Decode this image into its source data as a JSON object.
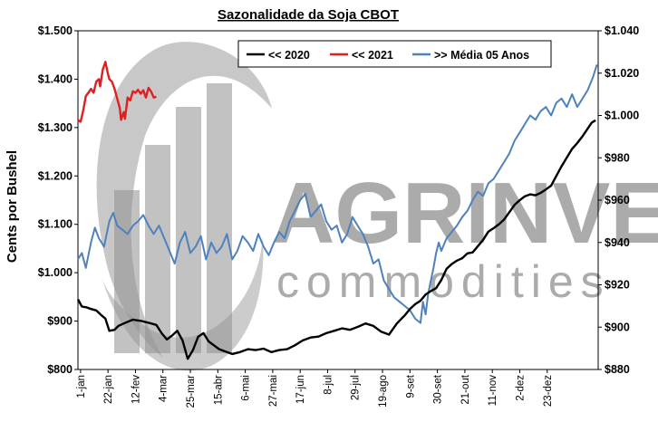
{
  "chart_data": {
    "type": "line",
    "title": "Sazonalidade da Soja CBOT",
    "ylabel": "Cents por Bushel",
    "y_left": {
      "ylim": [
        800,
        1500
      ],
      "ticks": [
        "$800",
        "$900",
        "$1.000",
        "$1.100",
        "$1.200",
        "$1.300",
        "$1.400",
        "$1.500"
      ]
    },
    "y_right": {
      "ylim": [
        880,
        1040
      ],
      "ticks": [
        "$880",
        "$900",
        "$920",
        "$940",
        "$960",
        "$980",
        "$1.000",
        "$1.020",
        "$1.040"
      ]
    },
    "x_ticks": [
      "1-jan",
      "22-jan",
      "12-fev",
      "4-mar",
      "25-mar",
      "15-abr",
      "6-mai",
      "27-mai",
      "17-jun",
      "8-jul",
      "29-jul",
      "19-ago",
      "9-set",
      "30-set",
      "21-out",
      "11-nov",
      "2-dez",
      "23-dez"
    ],
    "legend": {
      "placement": "top"
    },
    "grid": false,
    "watermark": {
      "brand": "AGRINVEST",
      "sub": "commodities"
    },
    "colors": {
      "s2020": "#000000",
      "s2021": "#e02020",
      "media": "#4f81bd"
    },
    "series": [
      {
        "name": "<< 2020",
        "axis": "left",
        "color": "#000000",
        "points": [
          [
            0,
            945
          ],
          [
            3,
            930
          ],
          [
            7,
            928
          ],
          [
            10,
            925
          ],
          [
            14,
            922
          ],
          [
            18,
            912
          ],
          [
            21,
            905
          ],
          [
            24,
            880
          ],
          [
            28,
            882
          ],
          [
            31,
            890
          ],
          [
            35,
            895
          ],
          [
            42,
            903
          ],
          [
            49,
            900
          ],
          [
            56,
            895
          ],
          [
            60,
            892
          ],
          [
            64,
            875
          ],
          [
            68,
            862
          ],
          [
            72,
            870
          ],
          [
            76,
            880
          ],
          [
            80,
            860
          ],
          [
            84,
            822
          ],
          [
            88,
            840
          ],
          [
            92,
            868
          ],
          [
            96,
            875
          ],
          [
            100,
            858
          ],
          [
            104,
            850
          ],
          [
            108,
            842
          ],
          [
            112,
            838
          ],
          [
            118,
            832
          ],
          [
            124,
            836
          ],
          [
            130,
            842
          ],
          [
            136,
            840
          ],
          [
            142,
            843
          ],
          [
            148,
            836
          ],
          [
            154,
            840
          ],
          [
            160,
            842
          ],
          [
            166,
            850
          ],
          [
            172,
            860
          ],
          [
            178,
            866
          ],
          [
            184,
            868
          ],
          [
            190,
            875
          ],
          [
            196,
            880
          ],
          [
            202,
            885
          ],
          [
            208,
            882
          ],
          [
            214,
            888
          ],
          [
            220,
            895
          ],
          [
            226,
            890
          ],
          [
            232,
            878
          ],
          [
            238,
            872
          ],
          [
            244,
            895
          ],
          [
            250,
            912
          ],
          [
            254,
            925
          ],
          [
            258,
            935
          ],
          [
            262,
            942
          ],
          [
            266,
            955
          ],
          [
            270,
            962
          ],
          [
            274,
            968
          ],
          [
            278,
            985
          ],
          [
            282,
            1008
          ],
          [
            286,
            1018
          ],
          [
            290,
            1025
          ],
          [
            294,
            1030
          ],
          [
            298,
            1040
          ],
          [
            302,
            1042
          ],
          [
            306,
            1055
          ],
          [
            310,
            1068
          ],
          [
            314,
            1085
          ],
          [
            318,
            1092
          ],
          [
            322,
            1100
          ],
          [
            326,
            1110
          ],
          [
            330,
            1125
          ],
          [
            334,
            1140
          ],
          [
            338,
            1150
          ],
          [
            342,
            1158
          ],
          [
            346,
            1162
          ],
          [
            350,
            1160
          ],
          [
            354,
            1165
          ],
          [
            358,
            1172
          ],
          [
            362,
            1180
          ],
          [
            366,
            1200
          ],
          [
            370,
            1220
          ],
          [
            374,
            1238
          ],
          [
            378,
            1256
          ],
          [
            382,
            1268
          ],
          [
            386,
            1282
          ],
          [
            390,
            1298
          ],
          [
            393,
            1310
          ],
          [
            396,
            1315
          ]
        ]
      },
      {
        "name": "<< 2021",
        "axis": "left",
        "color": "#e02020",
        "points": [
          [
            0,
            1315
          ],
          [
            2,
            1312
          ],
          [
            4,
            1335
          ],
          [
            6,
            1365
          ],
          [
            8,
            1372
          ],
          [
            10,
            1380
          ],
          [
            12,
            1372
          ],
          [
            14,
            1395
          ],
          [
            16,
            1400
          ],
          [
            17,
            1385
          ],
          [
            19,
            1420
          ],
          [
            21,
            1436
          ],
          [
            23,
            1410
          ],
          [
            24,
            1400
          ],
          [
            26,
            1395
          ],
          [
            28,
            1380
          ],
          [
            30,
            1360
          ],
          [
            32,
            1340
          ],
          [
            33,
            1316
          ],
          [
            35,
            1332
          ],
          [
            36,
            1318
          ],
          [
            38,
            1362
          ],
          [
            40,
            1356
          ],
          [
            42,
            1375
          ],
          [
            44,
            1372
          ],
          [
            46,
            1378
          ],
          [
            48,
            1370
          ],
          [
            50,
            1377
          ],
          [
            52,
            1362
          ],
          [
            54,
            1382
          ],
          [
            56,
            1374
          ],
          [
            58,
            1362
          ],
          [
            60,
            1364
          ]
        ]
      },
      {
        "name": ">> Média 05 Anos",
        "axis": "right",
        "color": "#4f81bd",
        "points": [
          [
            0,
            932
          ],
          [
            3,
            935
          ],
          [
            6,
            928
          ],
          [
            10,
            940
          ],
          [
            13,
            947
          ],
          [
            16,
            942
          ],
          [
            20,
            938
          ],
          [
            24,
            950
          ],
          [
            27,
            954
          ],
          [
            30,
            948
          ],
          [
            34,
            946
          ],
          [
            38,
            944
          ],
          [
            42,
            948
          ],
          [
            46,
            950
          ],
          [
            50,
            953
          ],
          [
            54,
            948
          ],
          [
            58,
            944
          ],
          [
            62,
            948
          ],
          [
            66,
            942
          ],
          [
            70,
            936
          ],
          [
            74,
            930
          ],
          [
            78,
            940
          ],
          [
            82,
            945
          ],
          [
            86,
            935
          ],
          [
            90,
            938
          ],
          [
            94,
            943
          ],
          [
            98,
            932
          ],
          [
            102,
            940
          ],
          [
            106,
            935
          ],
          [
            110,
            938
          ],
          [
            114,
            944
          ],
          [
            118,
            932
          ],
          [
            122,
            936
          ],
          [
            126,
            943
          ],
          [
            130,
            940
          ],
          [
            134,
            936
          ],
          [
            138,
            944
          ],
          [
            142,
            938
          ],
          [
            146,
            934
          ],
          [
            150,
            940
          ],
          [
            154,
            945
          ],
          [
            158,
            942
          ],
          [
            162,
            950
          ],
          [
            166,
            955
          ],
          [
            170,
            960
          ],
          [
            174,
            963
          ],
          [
            178,
            952
          ],
          [
            182,
            955
          ],
          [
            186,
            958
          ],
          [
            190,
            950
          ],
          [
            194,
            946
          ],
          [
            198,
            948
          ],
          [
            202,
            940
          ],
          [
            206,
            944
          ],
          [
            210,
            952
          ],
          [
            214,
            948
          ],
          [
            218,
            944
          ],
          [
            222,
            938
          ],
          [
            226,
            930
          ],
          [
            230,
            932
          ],
          [
            234,
            922
          ],
          [
            238,
            918
          ],
          [
            242,
            914
          ],
          [
            246,
            912
          ],
          [
            250,
            910
          ],
          [
            254,
            908
          ],
          [
            258,
            904
          ],
          [
            262,
            902
          ],
          [
            264,
            912
          ],
          [
            266,
            906
          ],
          [
            268,
            916
          ],
          [
            270,
            922
          ],
          [
            272,
            928
          ],
          [
            274,
            935
          ],
          [
            276,
            940
          ],
          [
            278,
            936
          ],
          [
            282,
            942
          ],
          [
            286,
            945
          ],
          [
            290,
            948
          ],
          [
            294,
            952
          ],
          [
            298,
            955
          ],
          [
            302,
            960
          ],
          [
            306,
            964
          ],
          [
            310,
            962
          ],
          [
            314,
            968
          ],
          [
            318,
            970
          ],
          [
            322,
            974
          ],
          [
            326,
            978
          ],
          [
            330,
            982
          ],
          [
            334,
            988
          ],
          [
            338,
            992
          ],
          [
            342,
            996
          ],
          [
            346,
            1000
          ],
          [
            350,
            998
          ],
          [
            354,
            1002
          ],
          [
            358,
            1004
          ],
          [
            362,
            1000
          ],
          [
            366,
            1006
          ],
          [
            370,
            1008
          ],
          [
            374,
            1004
          ],
          [
            378,
            1010
          ],
          [
            382,
            1004
          ],
          [
            386,
            1008
          ],
          [
            390,
            1012
          ],
          [
            394,
            1018
          ],
          [
            397,
            1024
          ]
        ]
      }
    ]
  }
}
